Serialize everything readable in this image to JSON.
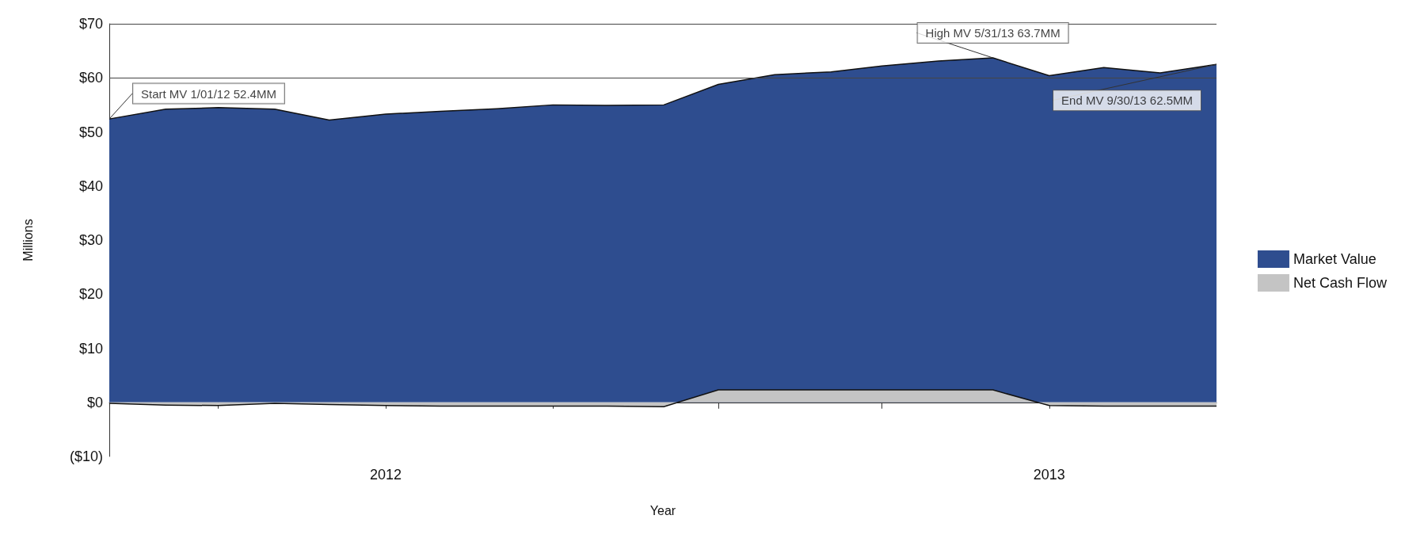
{
  "chart_data": {
    "type": "area",
    "xlabel": "Year",
    "ylabel": "Millions",
    "x": [
      "2012-01",
      "2012-02",
      "2012-03",
      "2012-04",
      "2012-05",
      "2012-06",
      "2012-07",
      "2012-08",
      "2012-09",
      "2012-10",
      "2012-11",
      "2012-12",
      "2013-01",
      "2013-02",
      "2013-03",
      "2013-04",
      "2013-05",
      "2013-06",
      "2013-07",
      "2013-08",
      "2013-09"
    ],
    "series": [
      {
        "name": "Market Value",
        "color": "#2e4d8f",
        "values": [
          52.4,
          54.2,
          54.5,
          54.2,
          52.2,
          53.3,
          53.8,
          54.3,
          55.0,
          54.9,
          55.0,
          58.8,
          60.6,
          61.1,
          62.2,
          63.1,
          63.7,
          60.4,
          61.9,
          60.9,
          62.5
        ]
      },
      {
        "name": "Net Cash Flow",
        "color": "#c4c4c4",
        "values": [
          -0.2,
          -0.5,
          -0.6,
          -0.2,
          -0.4,
          -0.6,
          -0.7,
          -0.7,
          -0.7,
          -0.7,
          -0.8,
          2.3,
          2.3,
          2.3,
          2.3,
          2.3,
          2.3,
          -0.6,
          -0.7,
          -0.7,
          -0.7
        ]
      }
    ],
    "xlim": [
      "2012-01",
      "2013-09"
    ],
    "xticks": [
      {
        "value": "2012-03",
        "label": null
      },
      {
        "value": "2012-06",
        "label": "2012"
      },
      {
        "value": "2012-09",
        "label": null
      },
      {
        "value": "2012-12",
        "label": null
      },
      {
        "value": "2013-03",
        "label": null
      },
      {
        "value": "2013-06",
        "label": "2013"
      }
    ],
    "ylim": [
      -10,
      70
    ],
    "yticks": [
      {
        "value": -10,
        "label": "($10)"
      },
      {
        "value": 0,
        "label": "$0"
      },
      {
        "value": 10,
        "label": "$10"
      },
      {
        "value": 20,
        "label": "$20"
      },
      {
        "value": 30,
        "label": "$30"
      },
      {
        "value": 40,
        "label": "$40"
      },
      {
        "value": 50,
        "label": "$50"
      },
      {
        "value": 60,
        "label": "$60"
      },
      {
        "value": 70,
        "label": "$70"
      }
    ],
    "grid": false,
    "legend": "right",
    "marker": "none",
    "ref_lines": [
      {
        "axis": "y",
        "value": 60,
        "color": "#444444"
      },
      {
        "axis": "y",
        "value": 70,
        "color": "#444444"
      }
    ],
    "annotations": [
      {
        "text": "Start MV 1/01/12 52.4MM",
        "x": "2012-01",
        "y": 52.4
      },
      {
        "text": "High MV 5/31/13 63.7MM",
        "x": "2013-05",
        "y": 63.7
      },
      {
        "text": "End MV 9/30/13 62.5MM",
        "x": "2013-09",
        "y": 62.5
      }
    ]
  }
}
